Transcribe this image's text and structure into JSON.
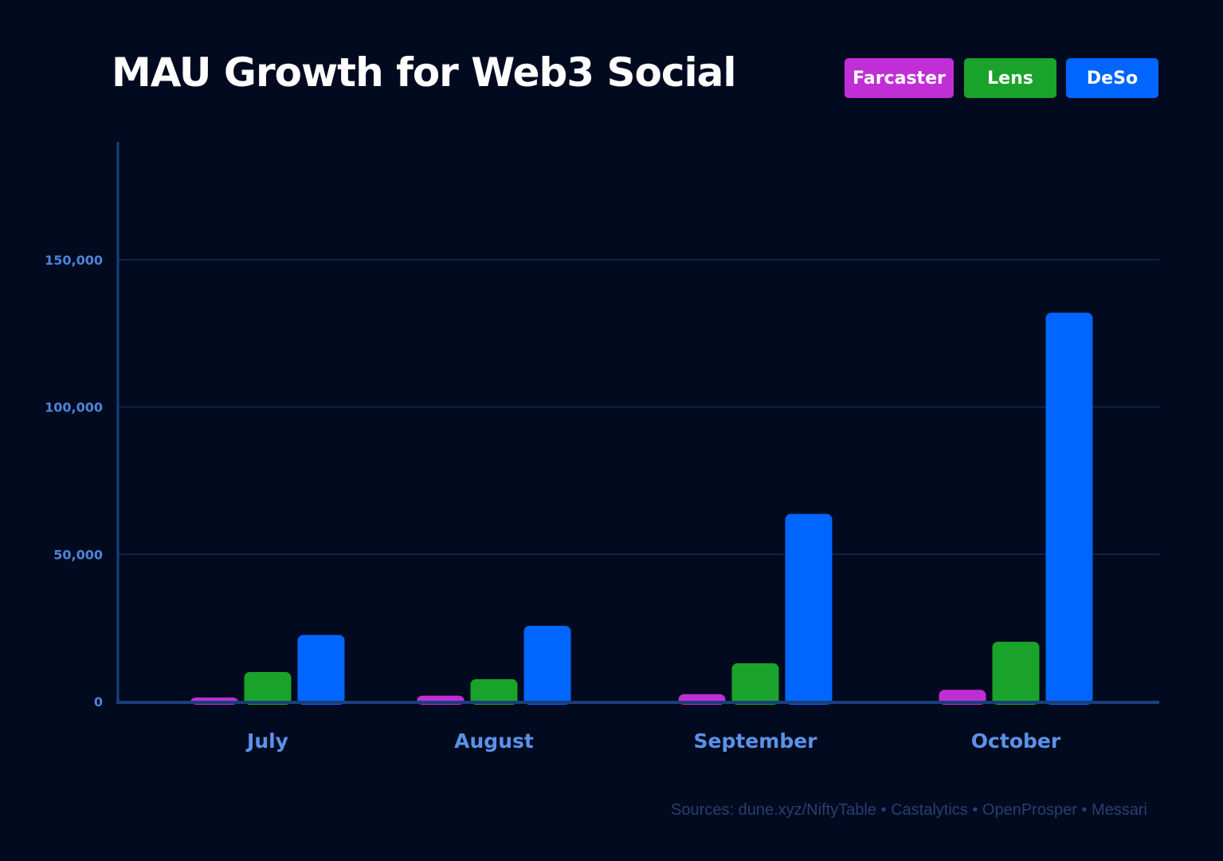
{
  "chart_data": {
    "type": "bar",
    "title": "MAU Growth for Web3 Social",
    "categories": [
      "July",
      "August",
      "September",
      "October"
    ],
    "series": [
      {
        "name": "Farcaster",
        "color": "#c02fd6",
        "values": [
          1400,
          2000,
          2500,
          4000
        ]
      },
      {
        "name": "Lens",
        "color": "#1aa32a",
        "values": [
          10000,
          7600,
          13000,
          20300
        ]
      },
      {
        "name": "DeSo",
        "color": "#0066ff",
        "values": [
          22600,
          25700,
          63700,
          132000
        ]
      }
    ],
    "ylim": [
      0,
      190000
    ],
    "yticks": [
      0,
      50000,
      100000,
      150000
    ],
    "ytick_labels": [
      "0",
      "50,000",
      "100,000",
      "150,000"
    ],
    "grid": true,
    "legend_placement": "top-right",
    "xlabel": "",
    "ylabel": ""
  },
  "source": "Sources: dune.xyz/NiftyTable • Castalytics • OpenProsper • Messari",
  "colors": {
    "background": "#020a20",
    "axis": "#1a3f7a",
    "grid": "#142a55"
  }
}
